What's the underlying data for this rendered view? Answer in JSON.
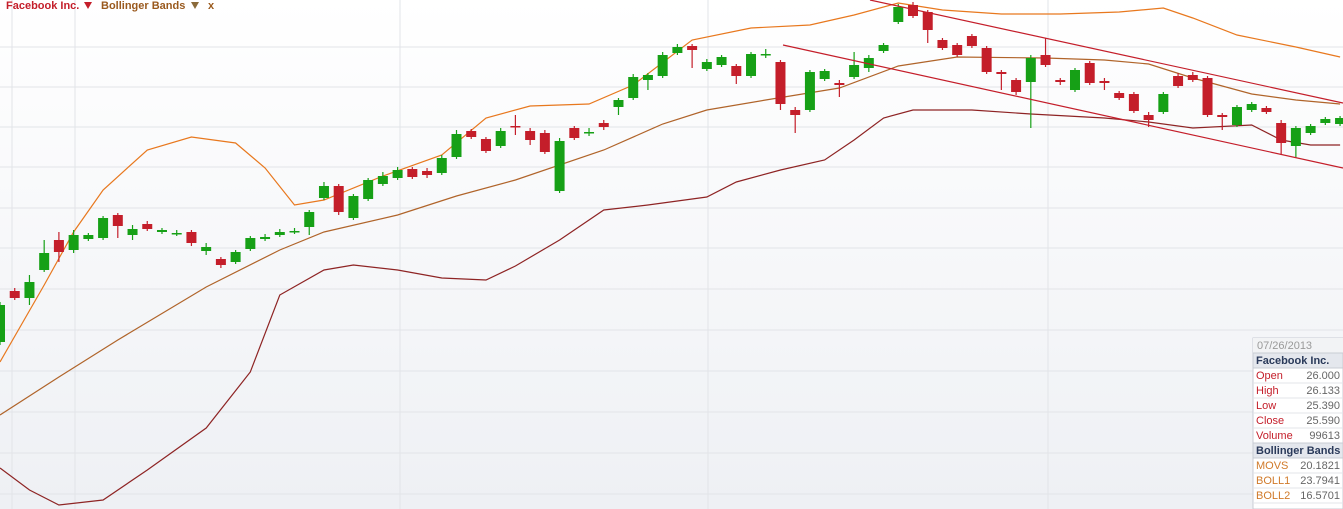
{
  "chart_data": {
    "type": "candlestick",
    "ylim": [
      9.55,
      35
    ],
    "xlim": [
      0,
      91.2
    ],
    "up_color": "#16a016",
    "down_color": "#c41e2a",
    "series": [
      {
        "name": "Facebook Inc.",
        "color": "#c41e2a",
        "open": [
          17.9,
          20.45,
          20.1,
          21.5,
          23.0,
          22.5,
          23.05,
          23.1,
          24.25,
          23.25,
          23.8,
          23.4,
          23.35,
          23.4,
          22.45,
          22.05,
          21.9,
          22.55,
          23.05,
          23.25,
          23.45,
          23.65,
          25.1,
          25.7,
          24.1,
          25.05,
          25.8,
          26.1,
          26.55,
          26.45,
          26.35,
          27.15,
          28.45,
          28.05,
          27.7,
          28.7,
          28.45,
          28.35,
          25.45,
          28.6,
          28.4,
          28.85,
          29.65,
          30.1,
          31.0,
          31.2,
          32.35,
          32.7,
          31.55,
          31.75,
          31.7,
          31.2,
          32.3,
          31.9,
          29.5,
          29.5,
          31.05,
          30.85,
          31.15,
          31.6,
          32.45,
          33.9,
          34.75,
          34.4,
          33.0,
          32.75,
          33.2,
          32.6,
          31.4,
          31.0,
          30.9,
          32.25,
          31.0,
          30.5,
          31.85,
          30.95,
          30.35,
          30.3,
          29.25,
          29.4,
          31.2,
          31.25,
          31.1,
          29.25,
          28.75,
          29.5,
          29.6,
          28.85,
          27.7,
          28.35,
          28.85,
          28.8
        ],
        "high": [
          19.9,
          20.6,
          21.25,
          23.0,
          23.4,
          23.5,
          23.35,
          24.2,
          24.35,
          23.75,
          23.95,
          23.6,
          23.5,
          23.5,
          22.85,
          22.15,
          22.5,
          23.2,
          23.3,
          23.55,
          23.6,
          24.5,
          25.9,
          25.8,
          25.3,
          26.1,
          26.4,
          26.65,
          26.65,
          26.6,
          27.25,
          28.5,
          28.55,
          28.15,
          28.6,
          29.25,
          28.6,
          28.5,
          28.1,
          28.7,
          28.6,
          29.0,
          30.1,
          31.3,
          31.35,
          32.4,
          32.8,
          32.8,
          32.05,
          32.25,
          31.8,
          32.4,
          32.55,
          32.0,
          29.65,
          31.5,
          31.55,
          31.0,
          32.4,
          32.25,
          32.85,
          34.8,
          34.9,
          34.5,
          33.1,
          32.85,
          33.3,
          32.7,
          31.5,
          31.1,
          32.25,
          33.1,
          31.1,
          31.6,
          31.95,
          31.1,
          30.45,
          30.4,
          29.4,
          30.4,
          31.35,
          31.4,
          31.2,
          29.35,
          29.75,
          29.9,
          29.7,
          29.0,
          28.7,
          28.8,
          29.15,
          29.2
        ],
        "low": [
          17.75,
          20.0,
          19.75,
          21.4,
          21.9,
          22.35,
          22.95,
          23.0,
          23.1,
          23.0,
          23.45,
          23.3,
          23.2,
          22.7,
          22.25,
          21.6,
          21.8,
          22.45,
          22.95,
          23.15,
          23.3,
          23.25,
          25.0,
          24.25,
          24.0,
          24.95,
          25.7,
          26.0,
          26.05,
          26.1,
          26.25,
          27.05,
          28.05,
          27.35,
          27.6,
          28.25,
          27.75,
          27.3,
          25.35,
          28.0,
          28.2,
          28.5,
          29.25,
          30.0,
          30.5,
          31.1,
          32.25,
          31.6,
          31.45,
          31.65,
          30.8,
          31.1,
          32.1,
          29.5,
          28.35,
          29.4,
          30.95,
          30.15,
          31.05,
          31.4,
          32.35,
          33.8,
          34.1,
          32.85,
          32.5,
          32.15,
          32.6,
          31.3,
          30.5,
          30.25,
          28.6,
          31.65,
          30.75,
          30.4,
          30.75,
          30.5,
          30.0,
          29.35,
          28.65,
          29.3,
          30.6,
          30.9,
          29.15,
          28.5,
          28.65,
          29.4,
          29.3,
          27.25,
          27.1,
          28.25,
          28.75,
          28.7
        ],
        "close": [
          19.75,
          20.1,
          20.9,
          22.35,
          22.4,
          23.25,
          23.25,
          24.1,
          23.7,
          23.55,
          23.55,
          23.5,
          23.35,
          22.85,
          22.65,
          21.75,
          22.4,
          23.1,
          23.15,
          23.4,
          23.45,
          24.4,
          25.7,
          24.4,
          25.2,
          26.0,
          26.2,
          26.5,
          26.15,
          26.25,
          27.1,
          28.3,
          28.15,
          27.45,
          28.45,
          28.65,
          28.0,
          27.4,
          27.95,
          28.1,
          28.4,
          28.65,
          30.0,
          31.15,
          31.25,
          32.25,
          32.65,
          32.5,
          31.9,
          32.15,
          31.2,
          32.3,
          32.3,
          29.8,
          29.25,
          31.4,
          31.45,
          30.75,
          31.75,
          32.1,
          32.75,
          34.65,
          34.2,
          33.5,
          32.6,
          32.25,
          32.7,
          31.4,
          31.3,
          30.4,
          32.1,
          31.75,
          30.9,
          31.5,
          30.85,
          30.85,
          30.1,
          29.45,
          29.0,
          30.3,
          30.7,
          31.0,
          29.25,
          29.15,
          29.65,
          29.8,
          29.4,
          27.85,
          28.6,
          28.7,
          29.05,
          29.1
        ]
      }
    ],
    "bands": {
      "name": "Bollinger Bands",
      "color": "#9a5a1e",
      "lines": [
        {
          "color": "#e8781e",
          "x": [
            0,
            3,
            5,
            7,
            10,
            13,
            16,
            18,
            20,
            22,
            26,
            30,
            33,
            36,
            40,
            43,
            47,
            51,
            55,
            58,
            61,
            64,
            68,
            72,
            76,
            79,
            81,
            84,
            88,
            91
          ],
          "values": [
            16.9,
            20.75,
            23.4,
            25.5,
            27.5,
            28.15,
            27.85,
            26.6,
            24.75,
            25.0,
            26.2,
            27.25,
            29.1,
            29.7,
            29.8,
            30.75,
            33.0,
            33.6,
            33.75,
            34.25,
            34.85,
            34.5,
            34.3,
            34.3,
            34.4,
            34.6,
            34.1,
            33.25,
            32.65,
            32.15
          ]
        },
        {
          "color": "#b0642a",
          "x": [
            0,
            4,
            8,
            14,
            19,
            22,
            27,
            31,
            35,
            41,
            45,
            48,
            52,
            57,
            61,
            65,
            71,
            75,
            78,
            81,
            85,
            88,
            91
          ],
          "values": [
            14.25,
            16.15,
            18.0,
            20.65,
            22.5,
            23.4,
            24.25,
            25.2,
            26.0,
            27.5,
            28.8,
            29.5,
            30.0,
            30.6,
            31.7,
            32.15,
            32.1,
            32.0,
            31.8,
            31.1,
            30.3,
            30.0,
            29.8
          ]
        },
        {
          "color": "#8e2424",
          "x": [
            0,
            2,
            4,
            7,
            10,
            14,
            17,
            19,
            22,
            24,
            27,
            30,
            33,
            35,
            38,
            41,
            44,
            48,
            50,
            53,
            56,
            58,
            60,
            62,
            66,
            70,
            75,
            78,
            81,
            85,
            87,
            89,
            91
          ],
          "values": [
            11.6,
            10.5,
            9.75,
            10.0,
            11.5,
            13.6,
            16.4,
            20.25,
            21.5,
            21.75,
            21.5,
            21.1,
            21.0,
            21.7,
            23.0,
            24.5,
            24.75,
            25.15,
            25.9,
            26.5,
            27.0,
            28.0,
            29.1,
            29.5,
            29.5,
            29.3,
            29.1,
            28.9,
            28.6,
            28.75,
            28.0,
            27.75,
            27.75
          ]
        }
      ]
    },
    "legend_close": "x",
    "info_panel": {
      "date": "07/26/2013",
      "sections": [
        {
          "title": "Facebook Inc.",
          "rows": [
            {
              "label": "Open",
              "value": "26.000"
            },
            {
              "label": "High",
              "value": "26.133"
            },
            {
              "label": "Low",
              "value": "25.390"
            },
            {
              "label": "Close",
              "value": "25.590"
            },
            {
              "label": "Volume",
              "value": "99613"
            }
          ]
        },
        {
          "title": "Bollinger Bands",
          "rows": [
            {
              "label": "MOVS",
              "value": "20.1821"
            },
            {
              "label": "BOLL1",
              "value": "23.7941"
            },
            {
              "label": "BOLL2",
              "value": "16.5701"
            }
          ]
        }
      ]
    }
  }
}
